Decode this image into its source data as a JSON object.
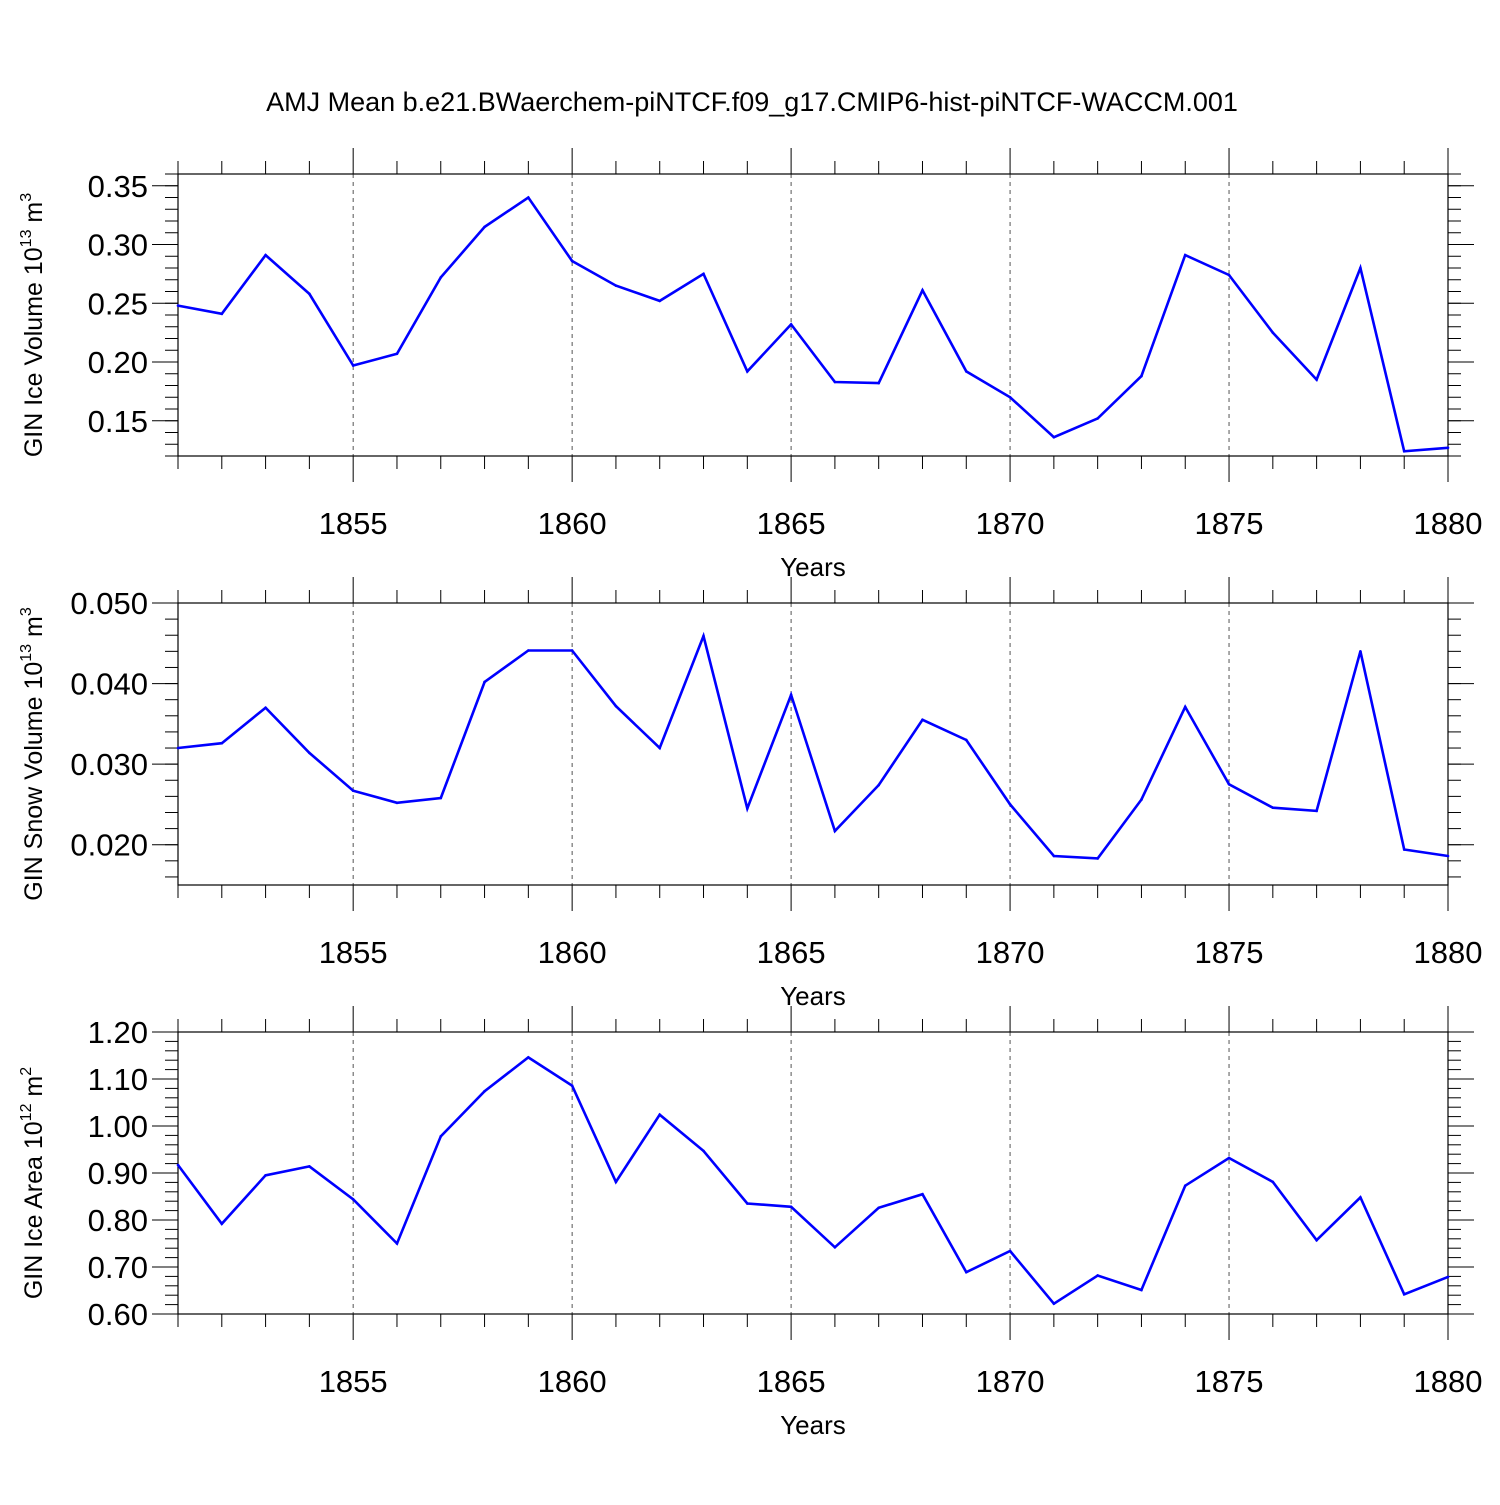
{
  "title": "AMJ Mean b.e21.BWaerchem-piNTCF.f09_g17.CMIP6-hist-piNTCF-WACCM.001",
  "chart_data": [
    {
      "type": "line",
      "ylabel": {
        "main": "GIN Ice Volume 10",
        "sup": "13",
        "rest": " m",
        "sup2": "3"
      },
      "xlabel": "Years",
      "xlim": [
        1851,
        1880
      ],
      "ylim": [
        0.12,
        0.36
      ],
      "ytick_step": 0.05,
      "ytick_first": 0.15,
      "ytick_labels": [
        "0.15",
        "0.20",
        "0.25",
        "0.30",
        "0.35"
      ],
      "ytick_values": [
        0.15,
        0.2,
        0.25,
        0.3,
        0.35
      ],
      "yminor_step": 0.01,
      "xtick_labels": [
        "1855",
        "1860",
        "1865",
        "1870",
        "1875",
        "1880"
      ],
      "xtick_values": [
        1855,
        1860,
        1865,
        1870,
        1875,
        1880
      ],
      "grid": "vertical dashed at major x ticks",
      "line_color": "#0000ff",
      "x": [
        1851,
        1852,
        1853,
        1854,
        1855,
        1856,
        1857,
        1858,
        1859,
        1860,
        1861,
        1862,
        1863,
        1864,
        1865,
        1866,
        1867,
        1868,
        1869,
        1870,
        1871,
        1872,
        1873,
        1874,
        1875,
        1876,
        1877,
        1878,
        1879,
        1880
      ],
      "values": [
        0.248,
        0.241,
        0.291,
        0.258,
        0.197,
        0.207,
        0.272,
        0.315,
        0.34,
        0.286,
        0.265,
        0.252,
        0.275,
        0.192,
        0.232,
        0.183,
        0.182,
        0.261,
        0.192,
        0.17,
        0.136,
        0.152,
        0.188,
        0.291,
        0.274,
        0.225,
        0.185,
        0.28,
        0.124,
        0.127
      ]
    },
    {
      "type": "line",
      "ylabel": {
        "main": "GIN Snow Volume 10",
        "sup": "13",
        "rest": " m",
        "sup2": "3"
      },
      "xlabel": "Years",
      "xlim": [
        1851,
        1880
      ],
      "ylim": [
        0.015,
        0.05
      ],
      "ytick_labels": [
        "0.020",
        "0.030",
        "0.040",
        "0.050"
      ],
      "ytick_values": [
        0.02,
        0.03,
        0.04,
        0.05
      ],
      "yminor_step": 0.002,
      "xtick_labels": [
        "1855",
        "1860",
        "1865",
        "1870",
        "1875",
        "1880"
      ],
      "xtick_values": [
        1855,
        1860,
        1865,
        1870,
        1875,
        1880
      ],
      "grid": "vertical dashed at major x ticks",
      "line_color": "#0000ff",
      "x": [
        1851,
        1852,
        1853,
        1854,
        1855,
        1856,
        1857,
        1858,
        1859,
        1860,
        1861,
        1862,
        1863,
        1864,
        1865,
        1866,
        1867,
        1868,
        1869,
        1870,
        1871,
        1872,
        1873,
        1874,
        1875,
        1876,
        1877,
        1878,
        1879,
        1880
      ],
      "values": [
        0.032,
        0.0326,
        0.037,
        0.0314,
        0.0267,
        0.0252,
        0.0258,
        0.0402,
        0.0441,
        0.0441,
        0.0372,
        0.032,
        0.0459,
        0.0245,
        0.0386,
        0.0217,
        0.0274,
        0.0355,
        0.033,
        0.025,
        0.0186,
        0.0183,
        0.0256,
        0.0371,
        0.0275,
        0.0246,
        0.0242,
        0.044,
        0.0194,
        0.0186
      ]
    },
    {
      "type": "line",
      "ylabel": {
        "main": "GIN Ice Area 10",
        "sup": "12",
        "rest": " m",
        "sup2": "2"
      },
      "xlabel": "Years",
      "xlim": [
        1851,
        1880
      ],
      "ylim": [
        0.6,
        1.2
      ],
      "ytick_labels": [
        "0.60",
        "0.70",
        "0.80",
        "0.90",
        "1.00",
        "1.10",
        "1.20"
      ],
      "ytick_values": [
        0.6,
        0.7,
        0.8,
        0.9,
        1.0,
        1.1,
        1.2
      ],
      "yminor_step": 0.02,
      "xtick_labels": [
        "1855",
        "1860",
        "1865",
        "1870",
        "1875",
        "1880"
      ],
      "xtick_values": [
        1855,
        1860,
        1865,
        1870,
        1875,
        1880
      ],
      "grid": "vertical dashed at major x ticks",
      "line_color": "#0000ff",
      "x": [
        1851,
        1852,
        1853,
        1854,
        1855,
        1856,
        1857,
        1858,
        1859,
        1860,
        1861,
        1862,
        1863,
        1864,
        1865,
        1866,
        1867,
        1868,
        1869,
        1870,
        1871,
        1872,
        1873,
        1874,
        1875,
        1876,
        1877,
        1878,
        1879,
        1880
      ],
      "values": [
        0.917,
        0.792,
        0.895,
        0.914,
        0.844,
        0.75,
        0.978,
        1.074,
        1.146,
        1.086,
        0.881,
        1.024,
        0.947,
        0.835,
        0.828,
        0.742,
        0.826,
        0.855,
        0.689,
        0.734,
        0.622,
        0.682,
        0.651,
        0.873,
        0.932,
        0.881,
        0.757,
        0.848,
        0.642,
        0.679
      ]
    }
  ]
}
